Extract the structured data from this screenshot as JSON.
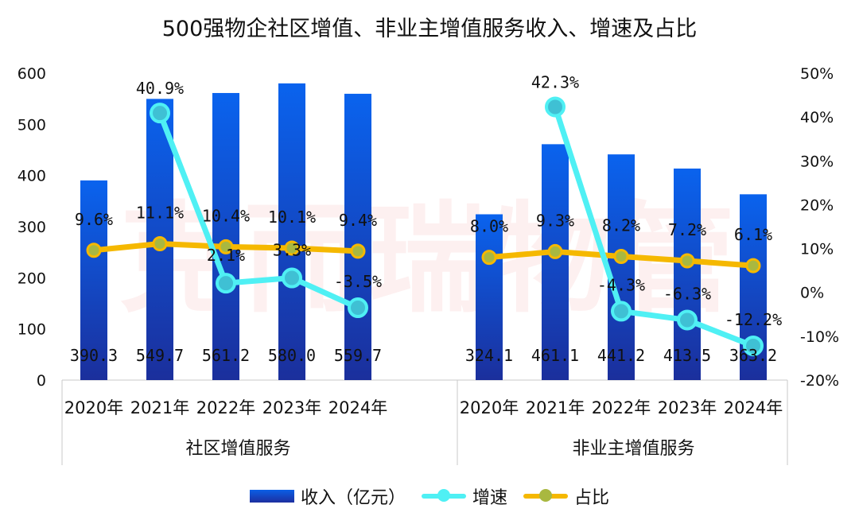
{
  "title": "500强物企社区增值、非业主增值服务收入、增速及占比",
  "watermark": "克而瑞物管",
  "legend": [
    {
      "key": "revenue",
      "label": "收入（亿元）",
      "color": "#0a5ee6"
    },
    {
      "key": "growth",
      "label": "增速",
      "color": "#4ff0f4"
    },
    {
      "key": "share",
      "label": "占比",
      "color": "#f5b800"
    }
  ],
  "chart_data": {
    "type": "bar",
    "title": "500强物企社区增值、非业主增值服务收入、增速及占比",
    "y_left": {
      "ylim": [
        0,
        600
      ],
      "ticks": [
        0,
        100,
        200,
        300,
        400,
        500,
        600
      ]
    },
    "y_right": {
      "ylim": [
        -20,
        50
      ],
      "unit": "%",
      "ticks": [
        "-20%",
        "-10%",
        "0%",
        "10%",
        "20%",
        "30%",
        "40%",
        "50%"
      ]
    },
    "categories": [
      "2020年",
      "2021年",
      "2022年",
      "2023年",
      "2024年"
    ],
    "groups": [
      {
        "name": "社区增值服务",
        "revenue": [
          390.3,
          549.7,
          561.2,
          580.0,
          559.7
        ],
        "revenue_labels": [
          "390.3",
          "549.7",
          "561.2",
          "580.0",
          "559.7"
        ],
        "growth": [
          null,
          40.9,
          2.1,
          3.3,
          -3.5
        ],
        "growth_labels": [
          "",
          "40.9%",
          "2.1%",
          "3.3%",
          "-3.5%"
        ],
        "share": [
          9.6,
          11.1,
          10.4,
          10.1,
          9.4
        ],
        "share_labels": [
          "9.6%",
          "11.1%",
          "10.4%",
          "10.1%",
          "9.4%"
        ]
      },
      {
        "name": "非业主增值服务",
        "revenue": [
          324.1,
          461.1,
          441.2,
          413.5,
          363.2
        ],
        "revenue_labels": [
          "324.1",
          "461.1",
          "441.2",
          "413.5",
          "363.2"
        ],
        "growth": [
          null,
          42.3,
          -4.3,
          -6.3,
          -12.2
        ],
        "growth_labels": [
          "",
          "42.3%",
          "-4.3%",
          "-6.3%",
          "-12.2%"
        ],
        "share": [
          8.0,
          9.3,
          8.2,
          7.2,
          6.1
        ],
        "share_labels": [
          "8.0%",
          "9.3%",
          "8.2%",
          "7.2%",
          "6.1%"
        ]
      }
    ],
    "series": [
      {
        "name": "收入（亿元）",
        "kind": "bar",
        "axis": "left"
      },
      {
        "name": "增速",
        "kind": "line",
        "axis": "right"
      },
      {
        "name": "占比",
        "kind": "line",
        "axis": "right"
      }
    ],
    "grid": false,
    "legend_position": "bottom"
  }
}
